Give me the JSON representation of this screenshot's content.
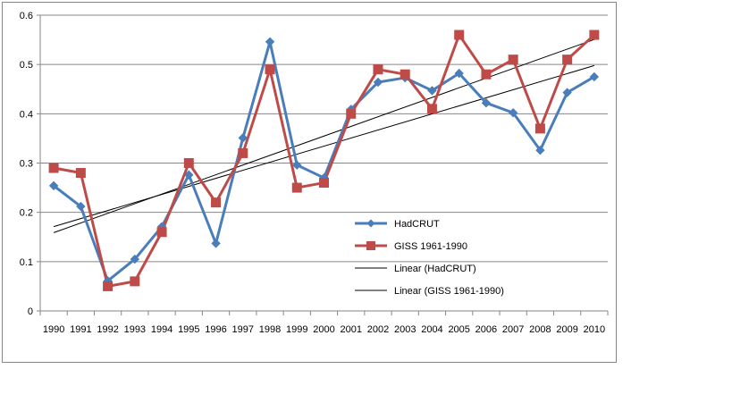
{
  "chart_data": {
    "type": "line",
    "title": "",
    "xlabel": "",
    "ylabel": "",
    "x": [
      "1990",
      "1991",
      "1992",
      "1993",
      "1994",
      "1995",
      "1996",
      "1997",
      "1998",
      "1999",
      "2000",
      "2001",
      "2002",
      "2003",
      "2004",
      "2005",
      "2006",
      "2007",
      "2008",
      "2009",
      "2010"
    ],
    "ylim": [
      0,
      0.6
    ],
    "yticks": [
      "0",
      "0.1",
      "0.2",
      "0.3",
      "0.4",
      "0.5",
      "0.6"
    ],
    "grid": "horizontal",
    "legend_placement": "inside-bottom-center",
    "series": [
      {
        "name": "HadCRUT",
        "color": "#4a7ebb",
        "marker": "diamond",
        "values": [
          0.254,
          0.212,
          0.061,
          0.105,
          0.171,
          0.276,
          0.137,
          0.351,
          0.546,
          0.296,
          0.27,
          0.409,
          0.464,
          0.473,
          0.447,
          0.482,
          0.422,
          0.402,
          0.326,
          0.443,
          0.475
        ]
      },
      {
        "name": "GISS 1961-1990",
        "color": "#be4b48",
        "marker": "square",
        "values": [
          0.29,
          0.28,
          0.05,
          0.06,
          0.16,
          0.3,
          0.22,
          0.32,
          0.49,
          0.25,
          0.26,
          0.4,
          0.49,
          0.48,
          0.41,
          0.56,
          0.48,
          0.51,
          0.37,
          0.51,
          0.56
        ]
      }
    ],
    "trendlines": [
      {
        "name": "Linear (HadCRUT)",
        "color": "#000000",
        "of": "HadCRUT"
      },
      {
        "name": "Linear (GISS 1961-1990)",
        "color": "#000000",
        "of": "GISS 1961-1990"
      }
    ]
  }
}
